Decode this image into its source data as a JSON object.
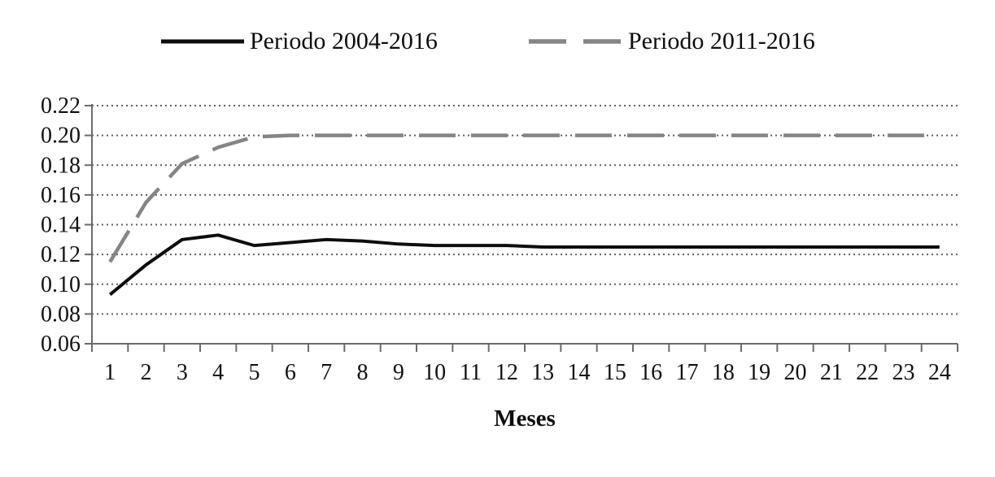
{
  "chart_data": {
    "type": "line",
    "title": "",
    "xlabel": "Meses",
    "ylabel": "",
    "x": [
      1,
      2,
      3,
      4,
      5,
      6,
      7,
      8,
      9,
      10,
      11,
      12,
      13,
      14,
      15,
      16,
      17,
      18,
      19,
      20,
      21,
      22,
      23,
      24
    ],
    "y_tick_labels": [
      "0.22",
      "0.20",
      "0.18",
      "0.16",
      "0.14",
      "0.12",
      "0.10",
      "0.08",
      "0.06"
    ],
    "ylim": [
      0.06,
      0.22
    ],
    "ytick_step": 0.02,
    "grid": "dotted-horizontal",
    "legend_position": "top-center",
    "series": [
      {
        "name": "Periodo 2004-2016",
        "style": "solid",
        "color": "#0d0d0d",
        "values": [
          0.093,
          0.113,
          0.13,
          0.133,
          0.126,
          0.128,
          0.13,
          0.129,
          0.127,
          0.126,
          0.126,
          0.126,
          0.125,
          0.125,
          0.125,
          0.125,
          0.125,
          0.125,
          0.125,
          0.125,
          0.125,
          0.125,
          0.125,
          0.125
        ]
      },
      {
        "name": "Periodo 2011-2016",
        "style": "dashed",
        "color": "#858585",
        "values": [
          0.115,
          0.155,
          0.181,
          0.192,
          0.199,
          0.2,
          0.2,
          0.2,
          0.2,
          0.2,
          0.2,
          0.2,
          0.2,
          0.2,
          0.2,
          0.2,
          0.2,
          0.2,
          0.2,
          0.2,
          0.2,
          0.2,
          0.2,
          0.2
        ]
      }
    ]
  },
  "colors": {
    "axis": "#6b6b6b",
    "gridline": "#606060",
    "text": "#111111",
    "background": "#ffffff"
  }
}
